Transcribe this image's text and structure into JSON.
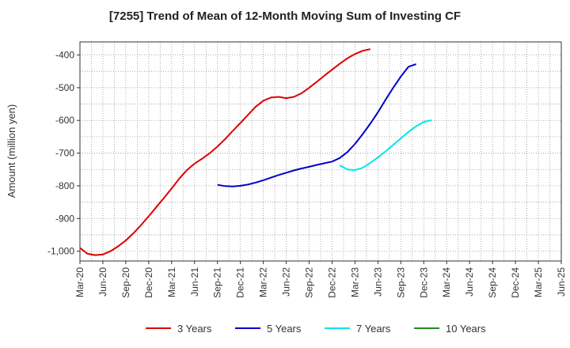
{
  "chart_data": {
    "type": "line",
    "title": "[7255]  Trend of Mean of 12-Month Moving Sum of Investing CF",
    "xlabel": "",
    "ylabel": "Amount (million yen)",
    "ylim": [
      -1030,
      -360
    ],
    "y_ticks": [
      -400,
      -500,
      -600,
      -700,
      -800,
      -900,
      -1000
    ],
    "y_tick_labels": [
      "-400",
      "-500",
      "-600",
      "-700",
      "-800",
      "-900",
      "-1,000"
    ],
    "x_tick_labels": [
      "Mar-20",
      "Jun-20",
      "Sep-20",
      "Dec-20",
      "Mar-21",
      "Jun-21",
      "Sep-21",
      "Dec-21",
      "Mar-22",
      "Jun-22",
      "Sep-22",
      "Dec-22",
      "Mar-23",
      "Jun-23",
      "Sep-23",
      "Dec-23",
      "Mar-24",
      "Jun-24",
      "Sep-24",
      "Dec-24",
      "Mar-25",
      "Jun-25"
    ],
    "grid": true,
    "legend_position": "bottom",
    "series": [
      {
        "name": "3 Years",
        "color": "#dd0000",
        "start_index": 0,
        "values": [
          -990,
          -1008,
          -1012,
          -1010,
          -1000,
          -985,
          -967,
          -945,
          -920,
          -893,
          -865,
          -837,
          -808,
          -778,
          -752,
          -732,
          -717,
          -700,
          -680,
          -657,
          -632,
          -608,
          -583,
          -558,
          -540,
          -530,
          -528,
          -532,
          -528,
          -517,
          -500,
          -482,
          -463,
          -445,
          -427,
          -410,
          -397,
          -387,
          -382
        ]
      },
      {
        "name": "5 Years",
        "color": "#0000cc",
        "start_index": 18,
        "values": [
          -797,
          -801,
          -802,
          -800,
          -796,
          -790,
          -783,
          -775,
          -767,
          -760,
          -753,
          -747,
          -742,
          -736,
          -731,
          -726,
          -715,
          -697,
          -672,
          -642,
          -610,
          -575,
          -537,
          -500,
          -466,
          -436,
          -428
        ]
      },
      {
        "name": "7 Years",
        "color": "#00e5ee",
        "start_index": 34,
        "values": [
          -737,
          -750,
          -752,
          -745,
          -730,
          -713,
          -695,
          -675,
          -655,
          -635,
          -618,
          -605,
          -599
        ]
      },
      {
        "name": "10 Years",
        "color": "#228b22",
        "start_index": 0,
        "values": []
      }
    ]
  }
}
